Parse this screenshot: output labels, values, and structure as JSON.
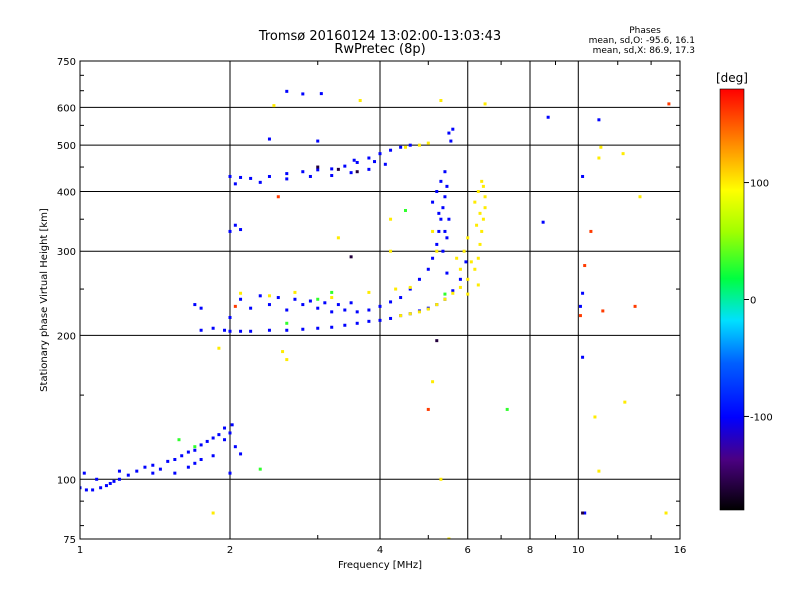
{
  "title": "Tromsø 20160124 13:02:00-13:03:43",
  "subtitle": "RwPretec (8p)",
  "phase_info": {
    "heading": "Phases",
    "line_o": "mean, sd,O: -95.6, 16.1",
    "line_x": "mean, sd,X: 86.9, 17.3"
  },
  "chart_data": {
    "type": "scatter",
    "title": "Tromsø 20160124 13:02:00-13:03:43",
    "subtitle": "RwPretec (8p)",
    "xlabel": "Frequency [MHz]",
    "ylabel": "Stationary phase Virtual Height [km]",
    "x_scale": "log",
    "y_scale": "log",
    "xlim": [
      1,
      16
    ],
    "ylim": [
      75,
      750
    ],
    "x_ticks": [
      1,
      2,
      4,
      6,
      8,
      10,
      16
    ],
    "x_tick_labels": [
      "1",
      "2",
      "4",
      "6",
      "8",
      "10",
      "16"
    ],
    "y_ticks": [
      75,
      100,
      200,
      300,
      400,
      500,
      600,
      750
    ],
    "y_tick_labels": [
      "75",
      "100",
      "200",
      "300",
      "400",
      "500",
      "600",
      "750"
    ],
    "grid": true,
    "colorbar": {
      "label": "[deg]",
      "range": [
        -180,
        180
      ],
      "ticks": [
        100,
        0,
        -100
      ],
      "tick_labels": [
        "100",
        "0",
        "-100"
      ]
    },
    "series": [
      {
        "color_value": -100,
        "points": [
          [
            1.0,
            96
          ],
          [
            1.03,
            95
          ],
          [
            1.06,
            95
          ],
          [
            1.1,
            96
          ],
          [
            1.13,
            97
          ],
          [
            1.17,
            99
          ],
          [
            1.2,
            100
          ],
          [
            1.25,
            102
          ],
          [
            1.3,
            104
          ],
          [
            1.35,
            106
          ],
          [
            1.4,
            107
          ],
          [
            1.45,
            105
          ],
          [
            1.5,
            109
          ],
          [
            1.55,
            110
          ],
          [
            1.6,
            112
          ],
          [
            1.65,
            114
          ],
          [
            1.7,
            115
          ],
          [
            1.75,
            118
          ],
          [
            1.8,
            120
          ],
          [
            1.85,
            122
          ],
          [
            1.9,
            124
          ],
          [
            1.95,
            121
          ],
          [
            2.0,
            125
          ],
          [
            2.05,
            117
          ],
          [
            2.1,
            113
          ],
          [
            1.85,
            112
          ],
          [
            1.7,
            108
          ],
          [
            1.55,
            103
          ],
          [
            1.4,
            103
          ],
          [
            1.2,
            104
          ],
          [
            1.02,
            103
          ],
          [
            1.08,
            100
          ],
          [
            1.15,
            98
          ],
          [
            1.65,
            106
          ],
          [
            1.75,
            110
          ],
          [
            1.95,
            128
          ],
          [
            2.02,
            130
          ],
          [
            2.0,
            103
          ],
          [
            1.75,
            205
          ],
          [
            1.85,
            207
          ],
          [
            1.95,
            205
          ],
          [
            2.0,
            204
          ],
          [
            2.1,
            204
          ],
          [
            2.2,
            204
          ],
          [
            2.4,
            205
          ],
          [
            2.6,
            205
          ],
          [
            2.8,
            206
          ],
          [
            3.0,
            207
          ],
          [
            3.2,
            208
          ],
          [
            3.4,
            210
          ],
          [
            3.6,
            212
          ],
          [
            3.8,
            214
          ],
          [
            4.0,
            215
          ],
          [
            4.2,
            217
          ],
          [
            4.4,
            220
          ],
          [
            4.6,
            222
          ],
          [
            4.8,
            225
          ],
          [
            5.0,
            228
          ],
          [
            5.2,
            232
          ],
          [
            5.4,
            238
          ],
          [
            5.6,
            248
          ],
          [
            5.8,
            262
          ],
          [
            5.95,
            285
          ],
          [
            2.0,
            218
          ],
          [
            2.2,
            228
          ],
          [
            2.4,
            232
          ],
          [
            2.6,
            226
          ],
          [
            2.8,
            232
          ],
          [
            3.0,
            228
          ],
          [
            3.2,
            224
          ],
          [
            3.4,
            226
          ],
          [
            3.6,
            224
          ],
          [
            3.8,
            226
          ],
          [
            4.0,
            230
          ],
          [
            4.2,
            235
          ],
          [
            4.4,
            240
          ],
          [
            4.6,
            250
          ],
          [
            4.8,
            262
          ],
          [
            5.0,
            275
          ],
          [
            5.1,
            290
          ],
          [
            5.2,
            310
          ],
          [
            5.25,
            330
          ],
          [
            5.3,
            350
          ],
          [
            5.35,
            370
          ],
          [
            5.4,
            390
          ],
          [
            5.45,
            410
          ],
          [
            5.2,
            400
          ],
          [
            5.3,
            420
          ],
          [
            5.4,
            440
          ],
          [
            5.1,
            380
          ],
          [
            5.25,
            360
          ],
          [
            5.35,
            300
          ],
          [
            5.45,
            270
          ],
          [
            1.7,
            232
          ],
          [
            1.75,
            228
          ],
          [
            2.1,
            238
          ],
          [
            2.3,
            242
          ],
          [
            2.5,
            240
          ],
          [
            2.7,
            238
          ],
          [
            2.9,
            236
          ],
          [
            3.1,
            234
          ],
          [
            3.3,
            232
          ],
          [
            3.5,
            234
          ],
          [
            2.0,
            430
          ],
          [
            2.1,
            428
          ],
          [
            2.2,
            426
          ],
          [
            2.4,
            430
          ],
          [
            2.6,
            436
          ],
          [
            2.8,
            440
          ],
          [
            3.0,
            444
          ],
          [
            3.2,
            446
          ],
          [
            3.4,
            452
          ],
          [
            3.6,
            460
          ],
          [
            3.8,
            470
          ],
          [
            4.0,
            480
          ],
          [
            4.2,
            488
          ],
          [
            4.4,
            495
          ],
          [
            4.6,
            500
          ],
          [
            2.05,
            415
          ],
          [
            2.3,
            418
          ],
          [
            2.6,
            425
          ],
          [
            2.9,
            430
          ],
          [
            3.2,
            432
          ],
          [
            3.5,
            438
          ],
          [
            3.8,
            445
          ],
          [
            4.1,
            456
          ],
          [
            5.5,
            530
          ],
          [
            5.6,
            540
          ],
          [
            5.55,
            510
          ],
          [
            5.4,
            330
          ],
          [
            5.5,
            350
          ],
          [
            5.45,
            320
          ],
          [
            2.05,
            340
          ],
          [
            2.1,
            333
          ],
          [
            2.0,
            330
          ],
          [
            2.6,
            648
          ],
          [
            2.8,
            640
          ],
          [
            3.05,
            641
          ],
          [
            2.4,
            515
          ],
          [
            3.0,
            510
          ],
          [
            3.55,
            465
          ],
          [
            3.9,
            462
          ],
          [
            8.7,
            572
          ],
          [
            11.0,
            565
          ],
          [
            10.2,
            430
          ],
          [
            8.5,
            345
          ],
          [
            10.2,
            245
          ],
          [
            10.1,
            230
          ],
          [
            10.2,
            180
          ],
          [
            10.3,
            85
          ]
        ]
      },
      {
        "color_value": 100,
        "points": [
          [
            4.4,
            220
          ],
          [
            4.6,
            222
          ],
          [
            4.8,
            224
          ],
          [
            5.0,
            227
          ],
          [
            5.2,
            232
          ],
          [
            5.4,
            238
          ],
          [
            5.6,
            245
          ],
          [
            5.8,
            252
          ],
          [
            6.0,
            262
          ],
          [
            6.2,
            275
          ],
          [
            6.3,
            290
          ],
          [
            6.35,
            310
          ],
          [
            6.4,
            330
          ],
          [
            6.45,
            350
          ],
          [
            6.5,
            370
          ],
          [
            6.5,
            390
          ],
          [
            6.45,
            410
          ],
          [
            6.4,
            420
          ],
          [
            6.3,
            400
          ],
          [
            6.2,
            380
          ],
          [
            6.0,
            320
          ],
          [
            5.9,
            300
          ],
          [
            5.7,
            290
          ],
          [
            5.8,
            275
          ],
          [
            6.1,
            285
          ],
          [
            6.25,
            340
          ],
          [
            6.35,
            360
          ],
          [
            2.1,
            245
          ],
          [
            2.4,
            242
          ],
          [
            2.7,
            246
          ],
          [
            3.2,
            240
          ],
          [
            3.8,
            246
          ],
          [
            4.3,
            250
          ],
          [
            4.6,
            252
          ],
          [
            4.5,
            495
          ],
          [
            4.8,
            500
          ],
          [
            5.0,
            505
          ],
          [
            5.3,
            620
          ],
          [
            6.5,
            610
          ],
          [
            2.45,
            605
          ],
          [
            3.65,
            620
          ],
          [
            11.0,
            470
          ],
          [
            11.1,
            495
          ],
          [
            10.8,
            135
          ],
          [
            11.0,
            104
          ],
          [
            12.3,
            480
          ],
          [
            13.3,
            390
          ],
          [
            15.0,
            85
          ],
          [
            12.4,
            145
          ],
          [
            1.9,
            188
          ],
          [
            2.55,
            185
          ],
          [
            2.6,
            178
          ],
          [
            5.1,
            160
          ],
          [
            5.3,
            100
          ],
          [
            5.5,
            75
          ],
          [
            1.85,
            85
          ],
          [
            4.2,
            350
          ],
          [
            4.2,
            300
          ],
          [
            3.3,
            320
          ],
          [
            5.1,
            330
          ],
          [
            5.2,
            300
          ],
          [
            6.3,
            255
          ],
          [
            6.0,
            244
          ]
        ]
      },
      {
        "color_value": 30,
        "points": [
          [
            1.58,
            121
          ],
          [
            1.7,
            117
          ],
          [
            2.3,
            105
          ],
          [
            2.6,
            212
          ],
          [
            3.2,
            246
          ],
          [
            4.5,
            365
          ],
          [
            7.2,
            140
          ],
          [
            3.0,
            238
          ],
          [
            5.4,
            244
          ]
        ]
      },
      {
        "color_value": 160,
        "points": [
          [
            2.05,
            230
          ],
          [
            10.6,
            330
          ],
          [
            10.3,
            280
          ],
          [
            13.0,
            230
          ],
          [
            11.2,
            225
          ],
          [
            15.2,
            610
          ],
          [
            2.5,
            390
          ],
          [
            5.0,
            140
          ],
          [
            10.1,
            220
          ]
        ]
      },
      {
        "color_value": -160,
        "points": [
          [
            3.5,
            292
          ],
          [
            5.2,
            195
          ],
          [
            10.2,
            85
          ],
          [
            3.0,
            450
          ],
          [
            3.3,
            445
          ],
          [
            3.6,
            440
          ]
        ]
      }
    ]
  }
}
